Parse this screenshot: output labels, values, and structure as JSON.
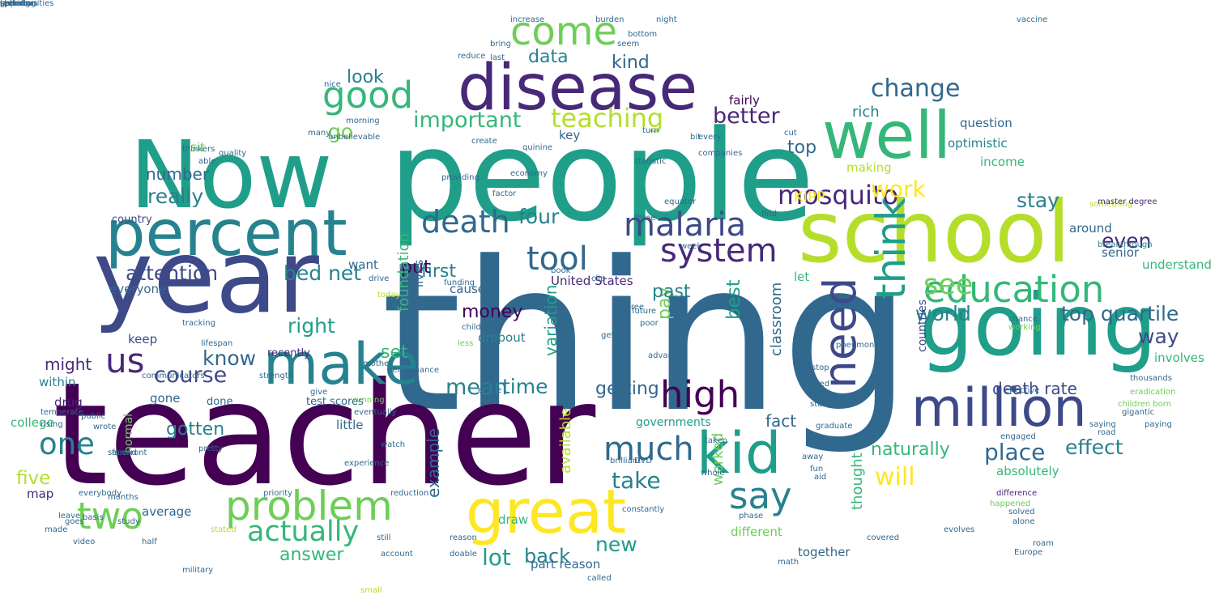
{
  "palette": {
    "dark_purple": "#440154",
    "indigo": "#482878",
    "purple_blue": "#3e4989",
    "blue": "#31688e",
    "teal": "#26828e",
    "green_teal": "#1f9e89",
    "sea_green": "#35b779",
    "green": "#6ece58",
    "lime": "#b5de2b",
    "yellow": "#fde725"
  },
  "words": [
    {
      "text": "thing",
      "color": "blue"
    },
    {
      "text": "teacher",
      "color": "dark_purple"
    },
    {
      "text": "people",
      "color": "green_teal"
    },
    {
      "text": "Now",
      "color": "green_teal"
    },
    {
      "text": "year",
      "color": "purple_blue"
    },
    {
      "text": "school",
      "color": "lime"
    },
    {
      "text": "going",
      "color": "green_teal"
    },
    {
      "text": "disease",
      "color": "indigo"
    },
    {
      "text": "percent",
      "color": "teal"
    },
    {
      "text": "well",
      "color": "sea_green"
    },
    {
      "text": "great",
      "color": "yellow"
    },
    {
      "text": "make",
      "color": "teal"
    },
    {
      "text": "million",
      "color": "purple_blue"
    },
    {
      "text": "kid",
      "color": "green_teal"
    },
    {
      "text": "need",
      "color": "purple_blue"
    },
    {
      "text": "think",
      "color": "green_teal"
    },
    {
      "text": "education",
      "color": "sea_green"
    },
    {
      "text": "problem",
      "color": "green"
    },
    {
      "text": "good",
      "color": "sea_green"
    },
    {
      "text": "come",
      "color": "green"
    },
    {
      "text": "malaria",
      "color": "purple_blue"
    },
    {
      "text": "tool",
      "color": "blue"
    },
    {
      "text": "high",
      "color": "dark_purple"
    },
    {
      "text": "say",
      "color": "teal"
    },
    {
      "text": "two",
      "color": "green"
    },
    {
      "text": "system",
      "color": "indigo"
    },
    {
      "text": "us",
      "color": "indigo"
    },
    {
      "text": "much",
      "color": "blue"
    },
    {
      "text": "one",
      "color": "teal"
    },
    {
      "text": "death",
      "color": "blue"
    },
    {
      "text": "actually",
      "color": "sea_green"
    },
    {
      "text": "see",
      "color": "green"
    },
    {
      "text": "mosquito",
      "color": "indigo"
    },
    {
      "text": "teaching",
      "color": "lime"
    },
    {
      "text": "change",
      "color": "blue"
    },
    {
      "text": "important",
      "color": "sea_green"
    },
    {
      "text": "course",
      "color": "purple_blue"
    },
    {
      "text": "lot",
      "color": "green_teal"
    },
    {
      "text": "take",
      "color": "teal"
    },
    {
      "text": "will",
      "color": "yellow"
    },
    {
      "text": "place",
      "color": "blue"
    },
    {
      "text": "know",
      "color": "blue"
    },
    {
      "text": "attention",
      "color": "purple_blue"
    },
    {
      "text": "mean",
      "color": "teal"
    },
    {
      "text": "bed net",
      "color": "teal"
    },
    {
      "text": "work",
      "color": "yellow"
    },
    {
      "text": "go",
      "color": "green"
    },
    {
      "text": "right",
      "color": "green_teal"
    },
    {
      "text": "new",
      "color": "green_teal"
    },
    {
      "text": "better",
      "color": "indigo"
    },
    {
      "text": "top quartile",
      "color": "blue"
    },
    {
      "text": "world",
      "color": "teal"
    },
    {
      "text": "stay",
      "color": "teal"
    },
    {
      "text": "really",
      "color": "teal"
    },
    {
      "text": "time",
      "color": "teal"
    },
    {
      "text": "four",
      "color": "teal"
    },
    {
      "text": "effect",
      "color": "teal"
    },
    {
      "text": "even",
      "color": "indigo"
    },
    {
      "text": "way",
      "color": "purple_blue"
    },
    {
      "text": "five",
      "color": "lime"
    },
    {
      "text": "back",
      "color": "teal"
    },
    {
      "text": "answer",
      "color": "sea_green"
    },
    {
      "text": "getting",
      "color": "blue"
    },
    {
      "text": "naturally",
      "color": "sea_green"
    },
    {
      "text": "data",
      "color": "teal"
    },
    {
      "text": "kind",
      "color": "blue"
    },
    {
      "text": "look",
      "color": "teal"
    },
    {
      "text": "first",
      "color": "teal"
    },
    {
      "text": "put",
      "color": "dark_purple"
    },
    {
      "text": "might",
      "color": "indigo"
    },
    {
      "text": "fact",
      "color": "blue"
    },
    {
      "text": "best",
      "color": "green_teal"
    },
    {
      "text": "pay",
      "color": "green"
    },
    {
      "text": "top",
      "color": "blue"
    },
    {
      "text": "number",
      "color": "blue"
    },
    {
      "text": "gotten",
      "color": "teal"
    },
    {
      "text": "past",
      "color": "teal"
    },
    {
      "text": "money",
      "color": "dark_purple"
    },
    {
      "text": "set",
      "color": "sea_green"
    },
    {
      "text": "death rate",
      "color": "purple_blue"
    },
    {
      "text": "thought",
      "color": "sea_green"
    },
    {
      "text": "rich",
      "color": "teal"
    },
    {
      "text": "classroom",
      "color": "blue"
    },
    {
      "text": "variation",
      "color": "green_teal"
    },
    {
      "text": "available",
      "color": "lime"
    },
    {
      "text": "foundation",
      "color": "sea_green"
    },
    {
      "text": "example",
      "color": "blue"
    },
    {
      "text": "worked",
      "color": "green"
    },
    {
      "text": "KIPP",
      "color": "yellow"
    },
    {
      "text": "making",
      "color": "lime"
    },
    {
      "text": "optimistic",
      "color": "teal"
    },
    {
      "text": "income",
      "color": "sea_green"
    },
    {
      "text": "fairly",
      "color": "dark_purple"
    },
    {
      "text": "question",
      "color": "blue"
    },
    {
      "text": "let",
      "color": "sea_green"
    },
    {
      "text": "understand",
      "color": "sea_green"
    },
    {
      "text": "senior",
      "color": "blue"
    },
    {
      "text": "involves",
      "color": "sea_green"
    },
    {
      "text": "around",
      "color": "blue"
    },
    {
      "text": "part reason",
      "color": "blue"
    },
    {
      "text": "average",
      "color": "blue"
    },
    {
      "text": "map",
      "color": "indigo"
    },
    {
      "text": "college",
      "color": "sea_green"
    },
    {
      "text": "drug",
      "color": "indigo"
    },
    {
      "text": "within",
      "color": "teal"
    },
    {
      "text": "everyone",
      "color": "blue"
    },
    {
      "text": "keep",
      "color": "purple_blue"
    },
    {
      "text": "sit",
      "color": "green"
    },
    {
      "text": "key",
      "color": "blue"
    },
    {
      "text": "want",
      "color": "blue"
    },
    {
      "text": "caused",
      "color": "blue"
    },
    {
      "text": "draw",
      "color": "sea_green"
    },
    {
      "text": "lives",
      "color": "blue"
    },
    {
      "text": "dropout",
      "color": "teal"
    },
    {
      "text": "little",
      "color": "blue"
    },
    {
      "text": "gone",
      "color": "blue"
    },
    {
      "text": "country",
      "color": "purple_blue"
    },
    {
      "text": "normal",
      "color": "green"
    },
    {
      "text": "United States",
      "color": "indigo"
    },
    {
      "text": "absolutely",
      "color": "sea_green"
    },
    {
      "text": "together",
      "color": "blue"
    },
    {
      "text": "different",
      "color": "green"
    },
    {
      "text": "countries",
      "color": "purple_blue"
    },
    {
      "text": "governments",
      "color": "green_teal"
    },
    {
      "text": "test scores",
      "color": "blue"
    },
    {
      "text": "recently",
      "color": "indigo"
    },
    {
      "text": "done",
      "color": "blue"
    },
    {
      "text": "something",
      "color": "lime"
    },
    {
      "text": "master degree",
      "color": "indigo"
    },
    {
      "text": "breakthrough",
      "color": "teal"
    },
    {
      "text": "paying",
      "color": "blue"
    },
    {
      "text": "children born",
      "color": "green"
    },
    {
      "text": "eradication",
      "color": "green"
    },
    {
      "text": "thousands",
      "color": "blue"
    },
    {
      "text": "saying",
      "color": "blue"
    },
    {
      "text": "engaged",
      "color": "blue"
    },
    {
      "text": "difference",
      "color": "indigo"
    },
    {
      "text": "working",
      "color": "green"
    },
    {
      "text": "pneumonia",
      "color": "blue"
    },
    {
      "text": "vaccine",
      "color": "blue"
    },
    {
      "text": "equator",
      "color": "blue"
    },
    {
      "text": "quinine",
      "color": "blue"
    },
    {
      "text": "DVD",
      "color": "blue"
    },
    {
      "text": "advanced",
      "color": "blue"
    },
    {
      "text": "public",
      "color": "blue"
    },
    {
      "text": "wrote",
      "color": "blue"
    },
    {
      "text": "leave",
      "color": "blue"
    },
    {
      "text": "video",
      "color": "blue"
    },
    {
      "text": "statistic",
      "color": "blue"
    },
    {
      "text": "taken",
      "color": "blue"
    },
    {
      "text": "whole",
      "color": "blue"
    },
    {
      "text": "brilliant",
      "color": "blue"
    },
    {
      "text": "constantly",
      "color": "blue"
    },
    {
      "text": "Europe",
      "color": "blue"
    },
    {
      "text": "running",
      "color": "green"
    },
    {
      "text": "experience",
      "color": "blue"
    },
    {
      "text": "eventually",
      "color": "blue"
    },
    {
      "text": "reduction",
      "color": "blue"
    },
    {
      "text": "watch",
      "color": "blue"
    },
    {
      "text": "happened",
      "color": "green"
    },
    {
      "text": "solved",
      "color": "blue"
    },
    {
      "text": "today",
      "color": "lime"
    },
    {
      "text": "funding",
      "color": "blue"
    },
    {
      "text": "performance",
      "color": "blue"
    },
    {
      "text": "increase",
      "color": "blue"
    },
    {
      "text": "bottom",
      "color": "blue"
    },
    {
      "text": "last",
      "color": "blue"
    },
    {
      "text": "bring",
      "color": "blue"
    },
    {
      "text": "seem",
      "color": "blue"
    },
    {
      "text": "many",
      "color": "blue"
    },
    {
      "text": "morning",
      "color": "blue"
    },
    {
      "text": "quality",
      "color": "blue"
    },
    {
      "text": "able",
      "color": "blue"
    },
    {
      "text": "thinkers",
      "color": "blue"
    },
    {
      "text": "temperate",
      "color": "blue"
    },
    {
      "text": "rising",
      "color": "blue"
    },
    {
      "text": "communicators",
      "color": "blue"
    },
    {
      "text": "second",
      "color": "blue"
    },
    {
      "text": "forefront",
      "color": "blue"
    },
    {
      "text": "everybody",
      "color": "blue"
    },
    {
      "text": "goes",
      "color": "blue"
    },
    {
      "text": "pretty",
      "color": "blue"
    },
    {
      "text": "less",
      "color": "green"
    },
    {
      "text": "childhood",
      "color": "blue"
    },
    {
      "text": "entire",
      "color": "blue"
    },
    {
      "text": "providing",
      "color": "blue"
    },
    {
      "text": "factor",
      "color": "blue"
    },
    {
      "text": "drive",
      "color": "blue"
    },
    {
      "text": "book",
      "color": "blue"
    },
    {
      "text": "clip",
      "color": "blue"
    },
    {
      "text": "called",
      "color": "blue"
    },
    {
      "text": "small",
      "color": "lime"
    },
    {
      "text": "bit",
      "color": "blue"
    },
    {
      "text": "cut",
      "color": "blue"
    },
    {
      "text": "create",
      "color": "blue"
    },
    {
      "text": "unbelievable",
      "color": "blue"
    },
    {
      "text": "chance",
      "color": "blue"
    },
    {
      "text": "effective",
      "color": "blue"
    },
    {
      "text": "gigantic",
      "color": "blue"
    },
    {
      "text": "road",
      "color": "blue"
    },
    {
      "text": "turn",
      "color": "blue"
    },
    {
      "text": "three",
      "color": "blue"
    },
    {
      "text": "degree",
      "color": "blue"
    },
    {
      "text": "gets",
      "color": "blue"
    },
    {
      "text": "future",
      "color": "blue"
    },
    {
      "text": "poor",
      "color": "blue"
    },
    {
      "text": "week",
      "color": "blue"
    },
    {
      "text": "find",
      "color": "blue"
    },
    {
      "text": "every",
      "color": "blue"
    },
    {
      "text": "companies",
      "color": "blue"
    },
    {
      "text": "tracking",
      "color": "blue"
    },
    {
      "text": "lifespan",
      "color": "blue"
    },
    {
      "text": "mother",
      "color": "blue"
    },
    {
      "text": "strength",
      "color": "blue"
    },
    {
      "text": "give",
      "color": "blue"
    },
    {
      "text": "away",
      "color": "blue"
    },
    {
      "text": "fun",
      "color": "blue"
    },
    {
      "text": "aid",
      "color": "blue"
    },
    {
      "text": "graduate",
      "color": "blue"
    },
    {
      "text": "started",
      "color": "blue"
    },
    {
      "text": "used",
      "color": "blue"
    },
    {
      "text": "stop",
      "color": "blue"
    },
    {
      "text": "phase",
      "color": "blue"
    },
    {
      "text": "half",
      "color": "blue"
    },
    {
      "text": "study",
      "color": "blue"
    },
    {
      "text": "made",
      "color": "blue"
    },
    {
      "text": "basis",
      "color": "blue"
    },
    {
      "text": "months",
      "color": "blue"
    },
    {
      "text": "priority",
      "color": "blue"
    },
    {
      "text": "stated",
      "color": "lime"
    },
    {
      "text": "military",
      "color": "blue"
    },
    {
      "text": "still",
      "color": "blue"
    },
    {
      "text": "account",
      "color": "blue"
    },
    {
      "text": "doable",
      "color": "blue"
    },
    {
      "text": "reason",
      "color": "blue"
    },
    {
      "text": "covered",
      "color": "blue"
    },
    {
      "text": "math",
      "color": "blue"
    },
    {
      "text": "evolves",
      "color": "blue"
    },
    {
      "text": "roam",
      "color": "blue"
    },
    {
      "text": "economy",
      "color": "blue"
    },
    {
      "text": "night",
      "color": "blue"
    },
    {
      "text": "burden",
      "color": "blue"
    },
    {
      "text": "alone",
      "color": "blue"
    },
    {
      "text": "reduce",
      "color": "blue"
    },
    {
      "text": "nice",
      "color": "blue"
    },
    {
      "text": "teel",
      "color": "blue"
    },
    {
      "text": "opportunities",
      "color": "blue"
    },
    {
      "text": "paradox",
      "color": "blue"
    },
    {
      "text": "sharing",
      "color": "blue"
    },
    {
      "text": "suffering",
      "color": "blue"
    },
    {
      "text": "generous",
      "color": "blue"
    },
    {
      "text": "spend",
      "color": "blue"
    }
  ]
}
